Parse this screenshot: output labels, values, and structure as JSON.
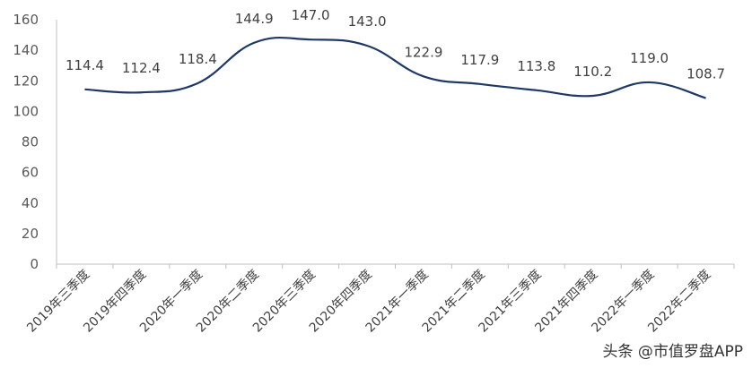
{
  "chart_data": {
    "type": "line",
    "categories": [
      "2019年三季度",
      "2019年四季度",
      "2020年一季度",
      "2020年二季度",
      "2020年三季度",
      "2020年四季度",
      "2021年一季度",
      "2021年二季度",
      "2021年三季度",
      "2021年四季度",
      "2022年一季度",
      "2022年二季度"
    ],
    "values": [
      114.4,
      112.4,
      118.4,
      144.9,
      147.0,
      143.0,
      122.9,
      117.9,
      113.8,
      110.2,
      119.0,
      108.7
    ],
    "value_labels": [
      "114.4",
      "112.4",
      "118.4",
      "144.9",
      "147.0",
      "143.0",
      "122.9",
      "117.9",
      "113.8",
      "110.2",
      "119.0",
      "108.7"
    ],
    "yticks": [
      "0",
      "20",
      "40",
      "60",
      "80",
      "100",
      "120",
      "140",
      "160"
    ],
    "ylim": [
      0,
      160
    ],
    "grid": false,
    "smooth": true,
    "line_color": "#1f3864",
    "axis_color": "#bfbfbf"
  },
  "watermark": {
    "text": "头条 @市值罗盘APP"
  }
}
